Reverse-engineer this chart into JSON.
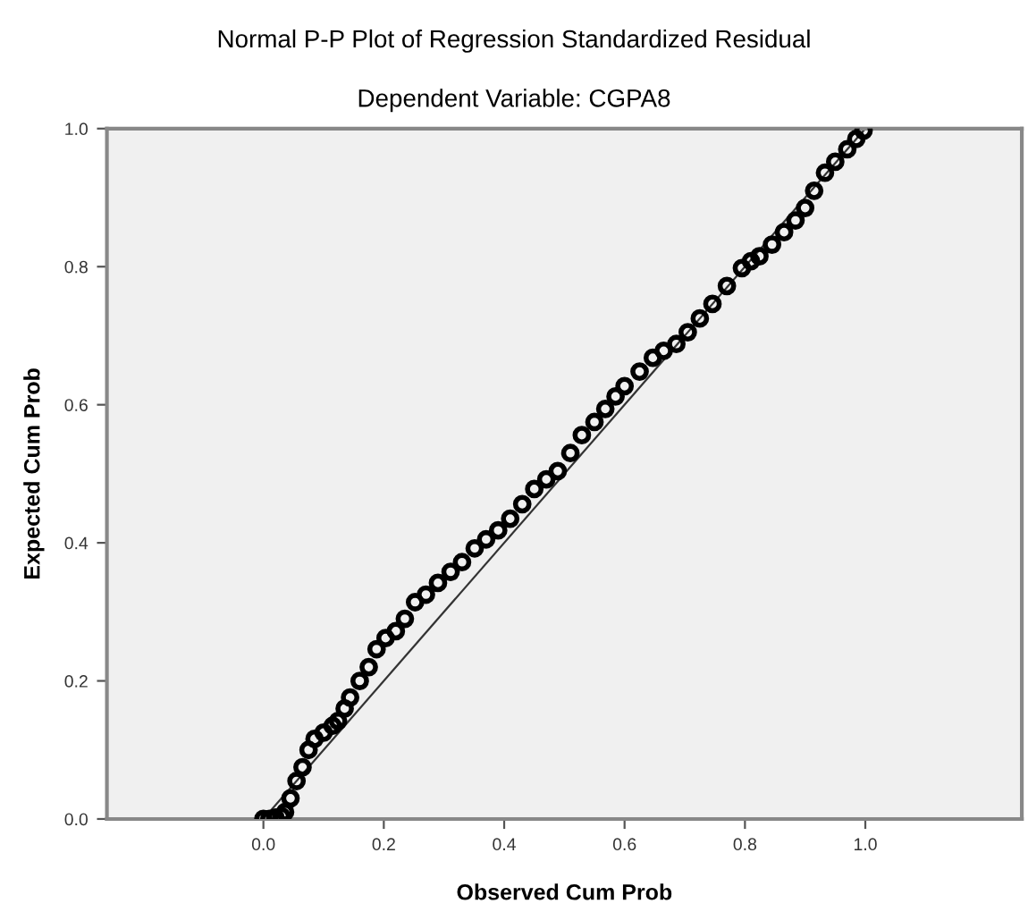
{
  "chart_data": {
    "type": "scatter",
    "title": "Normal P-P Plot of Regression Standardized Residual",
    "subtitle": "Dependent Variable: CGPA8",
    "xlabel": "Observed Cum Prob",
    "ylabel": "Expected Cum Prob",
    "xlim": [
      -0.26,
      1.26
    ],
    "ylim": [
      0,
      1
    ],
    "xticks": [
      {
        "value": 0,
        "label": "0.0"
      },
      {
        "value": 0.2,
        "label": "0.2"
      },
      {
        "value": 0.4,
        "label": "0.4"
      },
      {
        "value": 0.6,
        "label": "0.6"
      },
      {
        "value": 0.8,
        "label": "0.8"
      },
      {
        "value": 1,
        "label": "1.0"
      }
    ],
    "yticks": [
      {
        "value": 0,
        "label": "0.0"
      },
      {
        "value": 0.2,
        "label": "0.2"
      },
      {
        "value": 0.4,
        "label": "0.4"
      },
      {
        "value": 0.6,
        "label": "0.6"
      },
      {
        "value": 0.8,
        "label": "0.8"
      },
      {
        "value": 1,
        "label": "1.0"
      }
    ],
    "grid": false,
    "legend": false,
    "series": [
      {
        "type": "line",
        "marker": "none",
        "color": "#333333",
        "x": [
          0,
          1
        ],
        "values": [
          0,
          1
        ]
      },
      {
        "marker": "circle",
        "color": "#000000",
        "x": [
          0,
          0.01,
          0.02,
          0.03,
          0.036,
          0.045,
          0.055,
          0.065,
          0.075,
          0.085,
          0.1,
          0.115,
          0.124,
          0.135,
          0.144,
          0.16,
          0.175,
          0.188,
          0.203,
          0.22,
          0.235,
          0.252,
          0.27,
          0.29,
          0.311,
          0.33,
          0.351,
          0.37,
          0.39,
          0.41,
          0.43,
          0.45,
          0.47,
          0.489,
          0.51,
          0.529,
          0.55,
          0.568,
          0.585,
          0.6,
          0.625,
          0.647,
          0.665,
          0.686,
          0.705,
          0.725,
          0.746,
          0.77,
          0.795,
          0.81,
          0.824,
          0.845,
          0.865,
          0.884,
          0.9,
          0.915,
          0.933,
          0.95,
          0.97,
          0.985,
          0.997
        ],
        "values": [
          0,
          0,
          0.002,
          0.004,
          0.01,
          0.03,
          0.055,
          0.075,
          0.1,
          0.116,
          0.125,
          0.135,
          0.142,
          0.16,
          0.176,
          0.2,
          0.22,
          0.246,
          0.262,
          0.272,
          0.29,
          0.314,
          0.325,
          0.342,
          0.358,
          0.372,
          0.392,
          0.405,
          0.418,
          0.435,
          0.456,
          0.478,
          0.492,
          0.504,
          0.53,
          0.556,
          0.575,
          0.594,
          0.612,
          0.627,
          0.648,
          0.668,
          0.678,
          0.688,
          0.705,
          0.725,
          0.746,
          0.772,
          0.798,
          0.808,
          0.815,
          0.832,
          0.85,
          0.867,
          0.885,
          0.91,
          0.936,
          0.952,
          0.97,
          0.985,
          0.997
        ]
      }
    ]
  }
}
